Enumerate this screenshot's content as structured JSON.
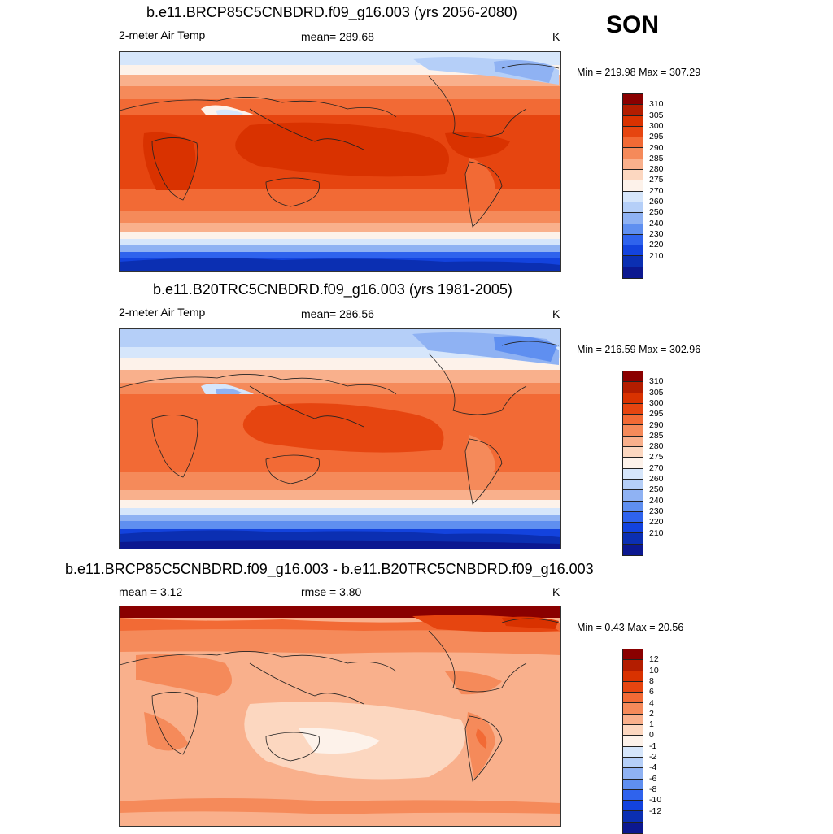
{
  "season": "SON",
  "panels": [
    {
      "title": "b.e11.BRCP85C5CNBDRD.f09_g16.003 (yrs 2056-2080)",
      "left_label": "2-meter Air Temp",
      "center_label": "mean= 289.68",
      "unit": "K",
      "minmax": "Min = 219.98 Max = 307.29"
    },
    {
      "title": "b.e11.B20TRC5CNBDRD.f09_g16.003 (yrs 1981-2005)",
      "left_label": "2-meter Air Temp",
      "center_label": "mean= 286.56",
      "unit": "K",
      "minmax": "Min = 216.59 Max = 302.96"
    },
    {
      "title": "b.e11.BRCP85C5CNBDRD.f09_g16.003 - b.e11.B20TRC5CNBDRD.f09_g16.003",
      "left_label": "mean =   3.12",
      "center_label": "rmse =   3.80",
      "unit": "K",
      "minmax": "Min =   0.43 Max =  20.56"
    }
  ],
  "colorbars": {
    "abs": {
      "ticks": [
        "310",
        "305",
        "300",
        "295",
        "290",
        "285",
        "280",
        "275",
        "270",
        "260",
        "250",
        "240",
        "230",
        "220",
        "210"
      ],
      "colors": [
        "#8a0000",
        "#b31d00",
        "#d93200",
        "#e64510",
        "#f26a35",
        "#f58a5a",
        "#f9b08c",
        "#fcd7c0",
        "#fdf2ea",
        "#d6e6fb",
        "#b5cff8",
        "#8fb2f3",
        "#5f8ff0",
        "#2f63ed",
        "#1343de",
        "#0b2fb2",
        "#0c1890"
      ]
    },
    "diff": {
      "ticks": [
        "12",
        "10",
        "8",
        "6",
        "4",
        "2",
        "1",
        "0",
        "-1",
        "-2",
        "-4",
        "-6",
        "-8",
        "-10",
        "-12"
      ],
      "colors": [
        "#8a0000",
        "#b31d00",
        "#d93200",
        "#e64510",
        "#f26a35",
        "#f58a5a",
        "#f9b08c",
        "#fcd7c0",
        "#fdf2ea",
        "#d6e6fb",
        "#b5cff8",
        "#8fb2f3",
        "#5f8ff0",
        "#2f63ed",
        "#1343de",
        "#0b2fb2",
        "#0c1890"
      ]
    }
  }
}
